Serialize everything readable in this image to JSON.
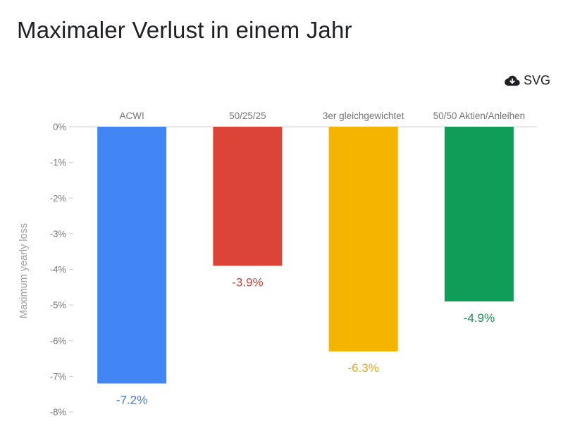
{
  "title": "Maximaler Verlust in einem Jahr",
  "download": {
    "label": "SVG",
    "icon": "cloud-download-icon"
  },
  "chart_data": {
    "type": "bar",
    "title": "Maximaler Verlust in einem Jahr",
    "xlabel": "",
    "ylabel": "Maximum yearly loss",
    "ylim": [
      -8,
      0
    ],
    "yticks": [
      0,
      -1,
      -2,
      -3,
      -4,
      -5,
      -6,
      -7,
      -8
    ],
    "ytick_labels": [
      "0%",
      "-1%",
      "-2%",
      "-3%",
      "-4%",
      "-5%",
      "-6%",
      "-7%",
      "-8%"
    ],
    "categories": [
      "ACWI",
      "50/25/25",
      "3er gleichgewichtet",
      "50/50 Aktien/Anleihen"
    ],
    "values": [
      -7.2,
      -3.9,
      -6.3,
      -4.9
    ],
    "value_labels": [
      "-7.2%",
      "-3.9%",
      "-6.3%",
      "-4.9%"
    ],
    "colors": [
      "#4285f4",
      "#db4437",
      "#f4b400",
      "#0f9d58"
    ],
    "label_colors": [
      "#4a76c9",
      "#c8453b",
      "#e0a928",
      "#1f8c55"
    ],
    "category_axis": "top",
    "grid": false
  }
}
